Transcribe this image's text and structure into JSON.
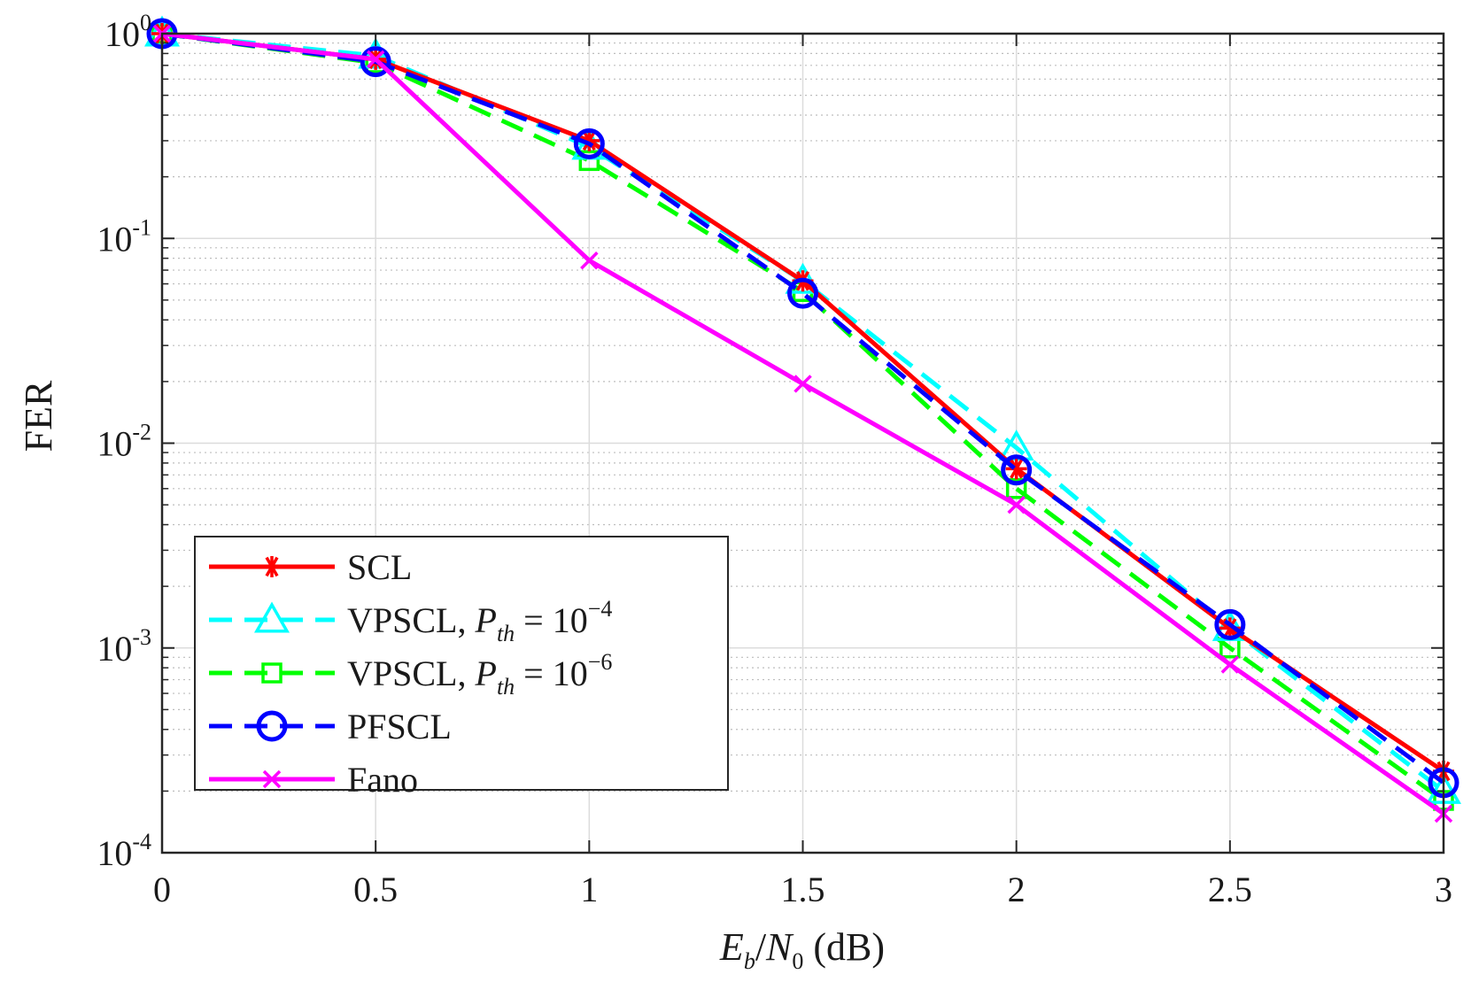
{
  "chart_data": {
    "type": "line",
    "title": "",
    "xlabel": {
      "e": "E",
      "b": "b",
      "slash": "/",
      "n": "N",
      "zero": "0",
      "unit": " (dB)"
    },
    "ylabel": "FER",
    "yscale": "log",
    "xlim": [
      0,
      3
    ],
    "ylim": [
      0.0001,
      1
    ],
    "grid": true,
    "legend_position": "bottom-left",
    "x_ticks": [
      "0",
      "0.5",
      "1",
      "1.5",
      "2",
      "2.5",
      "3"
    ],
    "y_ticks": [
      {
        "base": "10",
        "exp": "0"
      },
      {
        "base": "10",
        "exp": "-1"
      },
      {
        "base": "10",
        "exp": "-2"
      },
      {
        "base": "10",
        "exp": "-3"
      },
      {
        "base": "10",
        "exp": "-4"
      }
    ],
    "x": [
      0,
      0.5,
      1,
      1.5,
      2,
      2.5,
      3
    ],
    "series": [
      {
        "name": "SCL",
        "color": "#ff0000",
        "style": "solid",
        "marker": "asterisk",
        "values": [
          1.0,
          0.75,
          0.3,
          0.062,
          0.0075,
          0.00125,
          0.00025
        ],
        "legend": {
          "text": "SCL"
        }
      },
      {
        "name": "VPSCL, Pth = 10^-4",
        "color": "#00ffff",
        "style": "dashed",
        "marker": "triangle",
        "values": [
          1.0,
          0.78,
          0.28,
          0.062,
          0.0095,
          0.00125,
          0.0002
        ],
        "legend": {
          "text": "VPSCL, ",
          "p": "P",
          "sub": "th",
          "eq": " = 10",
          "exp": "−4"
        }
      },
      {
        "name": "VPSCL, Pth = 10^-6",
        "color": "#00ff00",
        "style": "dashed",
        "marker": "square",
        "values": [
          1.0,
          0.72,
          0.24,
          0.055,
          0.006,
          0.001,
          0.00018
        ],
        "legend": {
          "text": "VPSCL, ",
          "p": "P",
          "sub": "th",
          "eq": " = 10",
          "exp": "−6"
        }
      },
      {
        "name": "PFSCL",
        "color": "#0000ff",
        "style": "dashed",
        "marker": "circle",
        "values": [
          1.0,
          0.73,
          0.29,
          0.054,
          0.0074,
          0.0013,
          0.00022
        ],
        "legend": {
          "text": "PFSCL"
        }
      },
      {
        "name": "Fano",
        "color": "#ff00ff",
        "style": "solid",
        "marker": "x",
        "values": [
          1.0,
          0.75,
          0.078,
          0.0195,
          0.005,
          0.00083,
          0.000155
        ],
        "legend": {
          "text": "Fano"
        }
      }
    ]
  }
}
